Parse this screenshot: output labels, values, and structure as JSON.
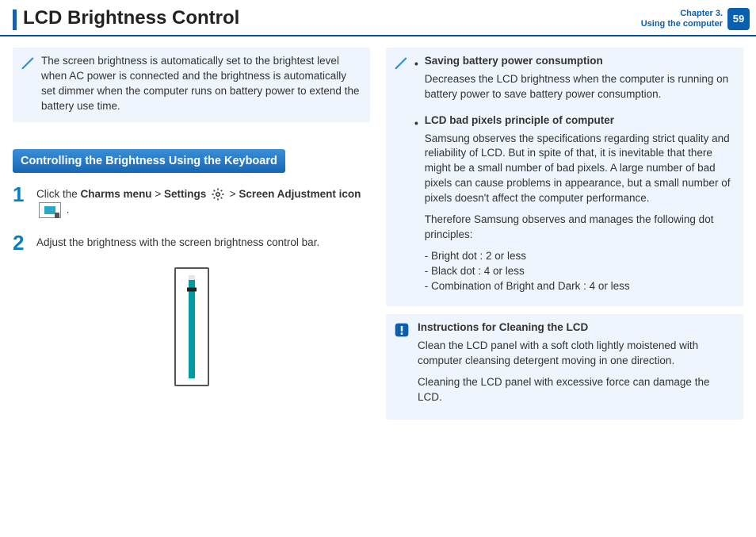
{
  "header": {
    "title": "LCD Brightness Control",
    "chapter_line1": "Chapter 3.",
    "chapter_line2": "Using the computer",
    "page_number": "59"
  },
  "colors": {
    "accent": "#0a5fb0",
    "section_grad_top": "#3a8fd8",
    "section_grad_bottom": "#1766b5",
    "note_bg": "#eef5fc",
    "slider_fill": "#009aa6",
    "slider_track": "#e6e6e6",
    "slider_border": "#555555"
  },
  "left": {
    "intro_note": "The screen brightness is automatically set to the brightest level when AC power is connected and the brightness is automatically set dimmer when the computer runs on battery power to extend the battery use time.",
    "section_title": "Controlling the Brightness Using the Keyboard",
    "step1_pre": "Click the ",
    "step1_b1": "Charms menu",
    "step1_gt1": " > ",
    "step1_b2": "Settings",
    "step1_gt2": " > ",
    "step1_b3": "Screen Adjustment icon",
    "step1_post": " .",
    "step2_text": "Adjust the brightness with the screen brightness control bar.",
    "slider": {
      "fill_percent": 85,
      "thumb_from_top_percent": 18
    }
  },
  "right": {
    "item1_title": "Saving battery power consumption",
    "item1_body": "Decreases the LCD brightness when the computer is running on battery power to save battery power consumption.",
    "item2_title": "LCD bad pixels principle of computer",
    "item2_body1": "Samsung observes the specifications regarding strict quality and reliability of LCD. But in spite of that, it is inevitable that there might be a small number of bad pixels. A large number of bad pixels can cause problems in appearance, but a small number of pixels doesn't affect the computer performance.",
    "item2_body2": "Therefore Samsung observes and manages the following dot principles:",
    "item2_d1": "- Bright dot : 2 or less",
    "item2_d2": "- Black dot  : 4 or less",
    "item2_d3": "- Combination of Bright and Dark : 4 or less",
    "warn_title": "Instructions for Cleaning the LCD",
    "warn_body1": "Clean the LCD panel with a soft cloth lightly moistened with computer cleansing detergent moving in one direction.",
    "warn_body2": "Cleaning the LCD panel with excessive force can damage the LCD."
  }
}
